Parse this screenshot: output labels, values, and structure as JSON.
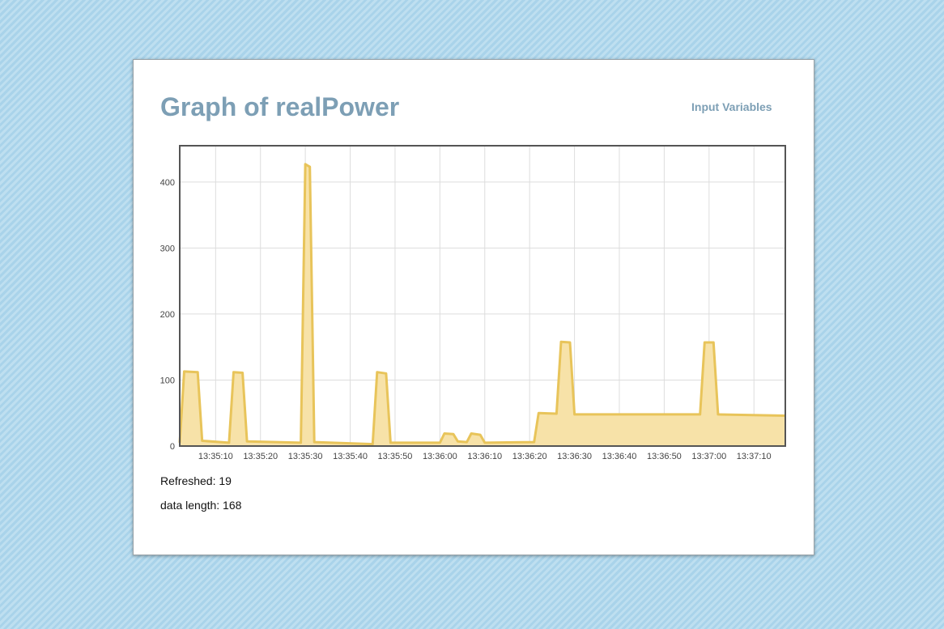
{
  "page": {
    "title": "Graph of realPower",
    "nav_link": "Input Variables",
    "refreshed_label": "Refreshed: 19",
    "data_length_label": "data length: 168"
  },
  "chart_data": {
    "type": "area",
    "title": "Graph of realPower",
    "xlabel": "",
    "ylabel": "",
    "ylim": [
      0,
      455
    ],
    "xlim": [
      "13:35:02",
      "13:37:17"
    ],
    "grid": true,
    "line_color": "#e8c45a",
    "fill_color": "#f7e2a8",
    "x_ticks": [
      "13:35:10",
      "13:35:20",
      "13:35:30",
      "13:35:40",
      "13:35:50",
      "13:36:00",
      "13:36:10",
      "13:36:20",
      "13:36:30",
      "13:36:40",
      "13:36:50",
      "13:37:00",
      "13:37:10"
    ],
    "y_ticks": [
      0,
      100,
      200,
      300,
      400
    ],
    "series": [
      {
        "x": [
          "13:35:02",
          "13:35:03",
          "13:35:06",
          "13:35:07",
          "13:35:13",
          "13:35:14",
          "13:35:16",
          "13:35:17",
          "13:35:29",
          "13:35:30",
          "13:35:31",
          "13:35:32",
          "13:35:45",
          "13:35:46",
          "13:35:48",
          "13:35:49",
          "13:36:00",
          "13:36:01",
          "13:36:03",
          "13:36:04",
          "13:36:06",
          "13:36:07",
          "13:36:09",
          "13:36:10",
          "13:36:21",
          "13:36:22",
          "13:36:26",
          "13:36:27",
          "13:36:29",
          "13:36:30",
          "13:36:58",
          "13:36:59",
          "13:37:01",
          "13:37:02",
          "13:37:17"
        ],
        "values": [
          5,
          113,
          112,
          8,
          5,
          112,
          111,
          7,
          5,
          427,
          423,
          6,
          3,
          112,
          110,
          5,
          5,
          19,
          18,
          7,
          6,
          19,
          17,
          5,
          6,
          50,
          49,
          158,
          157,
          48,
          48,
          157,
          157,
          48,
          46
        ]
      }
    ]
  }
}
